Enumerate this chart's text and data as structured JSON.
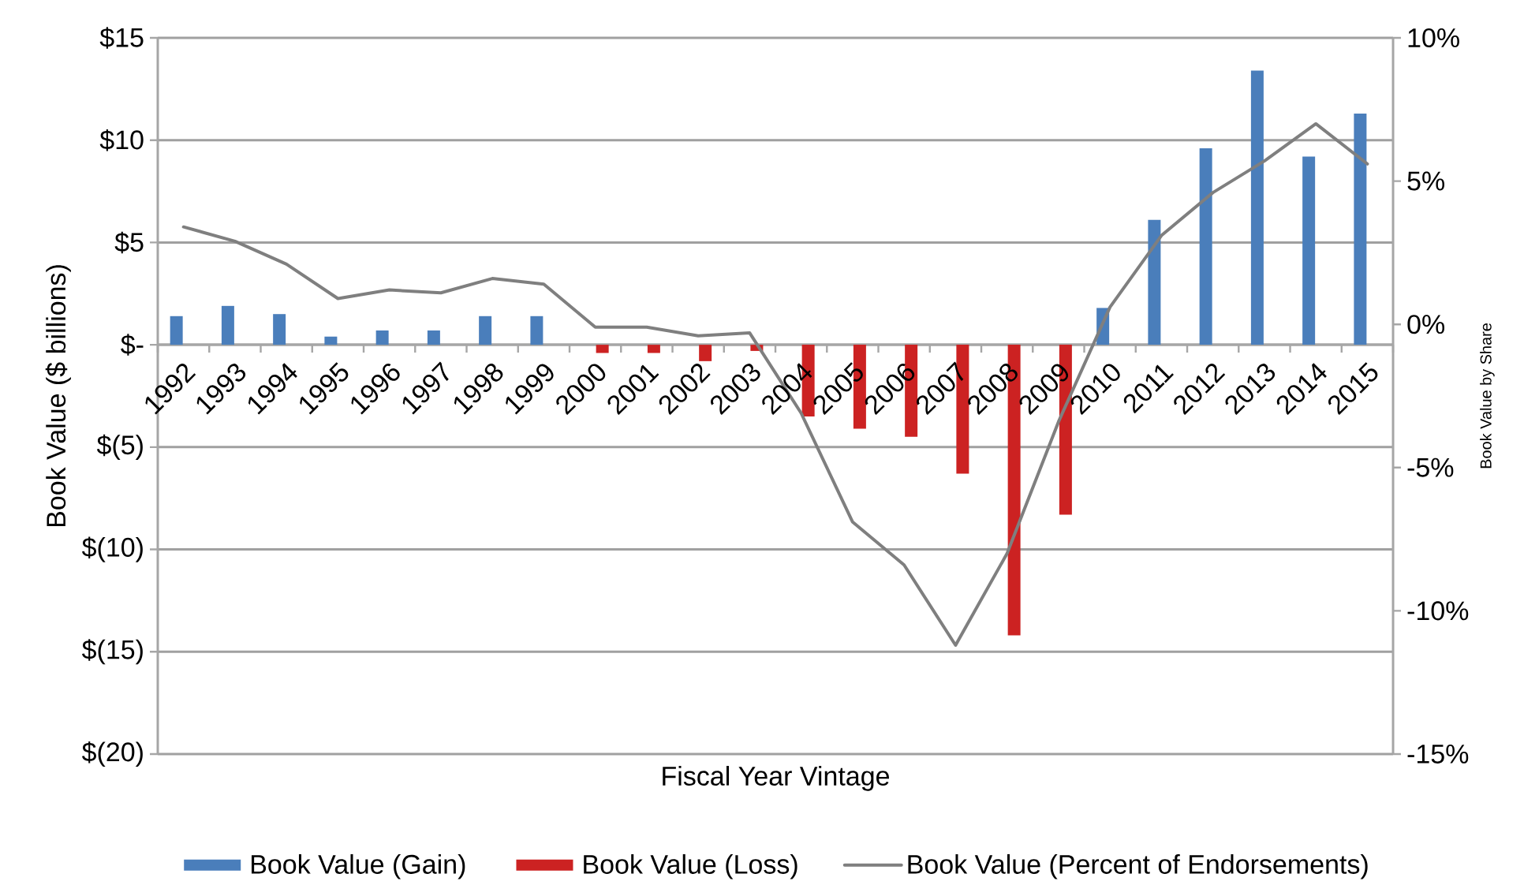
{
  "chart_data": {
    "type": "bar",
    "xlabel": "Fiscal Year Vintage",
    "ylabel": "Book Value ($ billions)",
    "y2label": "Book Value by Share",
    "categories": [
      "1992",
      "1993",
      "1994",
      "1995",
      "1996",
      "1997",
      "1998",
      "1999",
      "2000",
      "2001",
      "2002",
      "2003",
      "2004",
      "2005",
      "2006",
      "2007",
      "2008",
      "2009",
      "2010",
      "2011",
      "2012",
      "2013",
      "2014",
      "2015"
    ],
    "series": [
      {
        "name": "Book Value (Gain)",
        "color": "#4a7ebb",
        "values": [
          1.4,
          1.9,
          1.5,
          0.4,
          0.7,
          0.7,
          1.4,
          1.4,
          null,
          null,
          null,
          null,
          null,
          null,
          null,
          null,
          null,
          null,
          1.8,
          6.1,
          9.6,
          13.4,
          9.2,
          11.3
        ]
      },
      {
        "name": "Book Value (Loss)",
        "color": "#cc2222",
        "values": [
          null,
          null,
          null,
          null,
          null,
          null,
          null,
          null,
          -0.4,
          -0.4,
          -0.8,
          -0.3,
          -3.5,
          -4.1,
          -4.5,
          -6.3,
          -14.2,
          -8.3,
          null,
          null,
          null,
          null,
          null,
          null
        ]
      },
      {
        "name": "Book Value (Percent of Endorsements)",
        "type": "line",
        "axis": "y2",
        "color": "#7f7f7f",
        "values": [
          3.4,
          2.9,
          2.1,
          0.9,
          1.2,
          1.1,
          1.6,
          1.4,
          -0.1,
          -0.1,
          -0.4,
          -0.3,
          -3.1,
          -6.9,
          -8.4,
          -11.2,
          -8.0,
          -3.4,
          0.6,
          3.1,
          4.6,
          5.7,
          7.0,
          5.6
        ]
      }
    ],
    "ylim": [
      -20,
      15
    ],
    "yticks": [
      {
        "value": -20,
        "label": "$(20)"
      },
      {
        "value": -15,
        "label": "$(15)"
      },
      {
        "value": -10,
        "label": "$(10)"
      },
      {
        "value": -5,
        "label": "$(5)"
      },
      {
        "value": 0,
        "label": "$-"
      },
      {
        "value": 5,
        "label": "$5"
      },
      {
        "value": 10,
        "label": "$10"
      },
      {
        "value": 15,
        "label": "$15"
      }
    ],
    "y2lim": [
      -15,
      10
    ],
    "y2ticks": [
      {
        "value": -15,
        "label": "-15%"
      },
      {
        "value": -10,
        "label": "-10%"
      },
      {
        "value": -5,
        "label": "-5%"
      },
      {
        "value": 0,
        "label": "0%"
      },
      {
        "value": 5,
        "label": "5%"
      },
      {
        "value": 10,
        "label": "10%"
      }
    ],
    "grid": "y",
    "legend": "bottom"
  }
}
